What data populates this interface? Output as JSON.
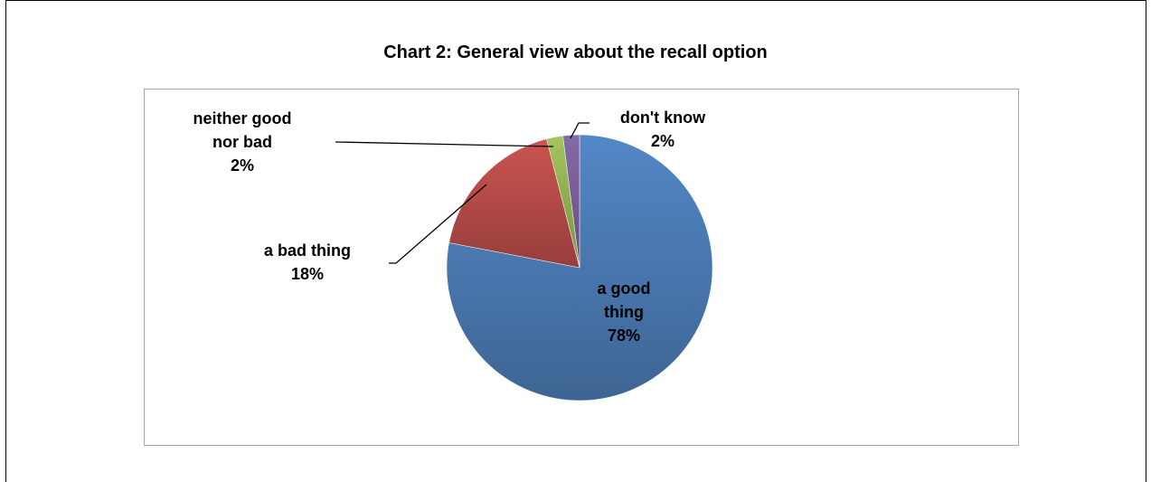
{
  "chart_data": {
    "type": "pie",
    "title": "Chart 2: General view about the recall option",
    "slices": [
      {
        "label_lines": [
          "a good",
          "thing"
        ],
        "value": 78,
        "value_label": "78%",
        "color": "#4f81bd"
      },
      {
        "label_lines": [
          "a bad thing"
        ],
        "value": 18,
        "value_label": "18%",
        "color": "#c0504d"
      },
      {
        "label_lines": [
          "neither good",
          "nor bad"
        ],
        "value": 2,
        "value_label": "2%",
        "color": "#9bbb59"
      },
      {
        "label_lines": [
          "don't know"
        ],
        "value": 2,
        "value_label": "2%",
        "color": "#8064a2"
      }
    ],
    "legend": "none"
  }
}
